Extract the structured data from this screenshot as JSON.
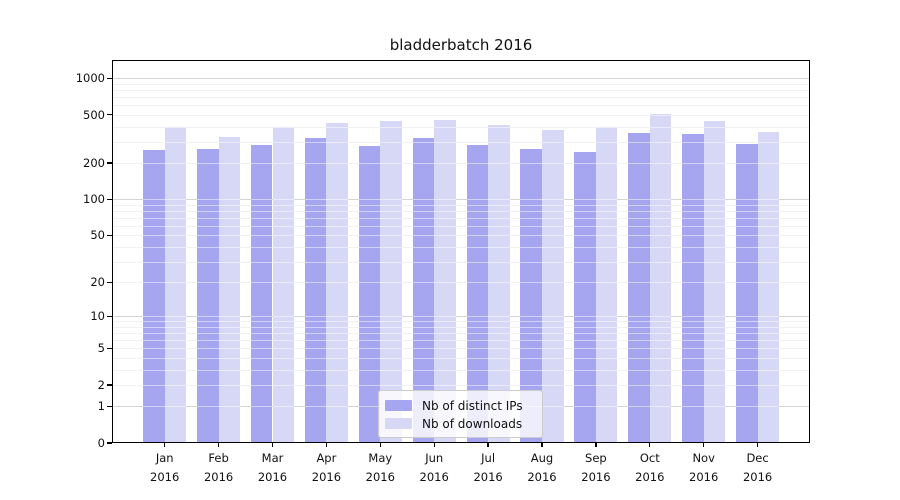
{
  "title": "bladderbatch 2016",
  "chart_data": {
    "type": "bar",
    "title": "bladderbatch 2016",
    "categories": [
      "Jan 2016",
      "Feb 2016",
      "Mar 2016",
      "Apr 2016",
      "May 2016",
      "Jun 2016",
      "Jul 2016",
      "Aug 2016",
      "Sep 2016",
      "Oct 2016",
      "Nov 2016",
      "Dec 2016"
    ],
    "x_tick_line1": [
      "Jan",
      "Feb",
      "Mar",
      "Apr",
      "May",
      "Jun",
      "Jul",
      "Aug",
      "Sep",
      "Oct",
      "Nov",
      "Dec"
    ],
    "x_tick_line2": "2016",
    "series": [
      {
        "name": "Nb of distinct IPs",
        "color": "#a5a5f0",
        "values": [
          256,
          262,
          282,
          324,
          277,
          320,
          282,
          263,
          248,
          352,
          346,
          285
        ]
      },
      {
        "name": "Nb of downloads",
        "color": "#d7d7f6",
        "values": [
          395,
          330,
          395,
          430,
          442,
          455,
          412,
          375,
          400,
          508,
          448,
          358
        ]
      }
    ],
    "xlabel": "",
    "ylabel": "",
    "yscale": "log1p",
    "ylim": [
      0,
      1390
    ],
    "yticks": [
      0,
      1,
      2,
      5,
      10,
      20,
      50,
      100,
      200,
      500,
      1000
    ],
    "ytick_labels": [
      "0",
      "1",
      "2",
      "5",
      "10",
      "20",
      "50",
      "100",
      "200",
      "500",
      "1000"
    ],
    "grid": "horizontal major (powers of 10) + faint minors (2-9 per decade)",
    "legend_position": "inside bottom-center",
    "legend_entries": [
      "Nb of distinct IPs",
      "Nb of downloads"
    ]
  },
  "colors": {
    "background": "#ffffff",
    "spine": "#000000",
    "major_grid": "#a8a8a8",
    "minor_grid": "#e3e3e3",
    "text": "#111111",
    "legend_border": "#cccccc"
  }
}
